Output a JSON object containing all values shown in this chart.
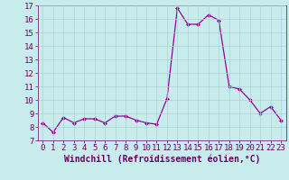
{
  "x": [
    0,
    1,
    2,
    3,
    4,
    5,
    6,
    7,
    8,
    9,
    10,
    11,
    12,
    13,
    14,
    15,
    16,
    17,
    18,
    19,
    20,
    21,
    22,
    23
  ],
  "y": [
    8.3,
    7.6,
    8.7,
    8.3,
    8.6,
    8.6,
    8.3,
    8.8,
    8.8,
    8.5,
    8.3,
    8.2,
    10.1,
    16.8,
    15.6,
    15.6,
    16.3,
    15.9,
    11.0,
    10.8,
    10.0,
    9.0,
    9.5,
    8.5
  ],
  "line_color": "#990099",
  "marker": "D",
  "marker_size": 2,
  "bg_color": "#c8ecec",
  "grid_color": "#aad4d4",
  "xlabel": "Windchill (Refroidissement éolien,°C)",
  "xlabel_fontsize": 7,
  "ylim": [
    7,
    17
  ],
  "xlim": [
    -0.5,
    23.5
  ],
  "yticks": [
    7,
    8,
    9,
    10,
    11,
    12,
    13,
    14,
    15,
    16,
    17
  ],
  "xticks": [
    0,
    1,
    2,
    3,
    4,
    5,
    6,
    7,
    8,
    9,
    10,
    11,
    12,
    13,
    14,
    15,
    16,
    17,
    18,
    19,
    20,
    21,
    22,
    23
  ],
  "tick_fontsize": 6.5,
  "tick_color": "#660066",
  "label_color": "#660066",
  "spine_color": "#660066"
}
